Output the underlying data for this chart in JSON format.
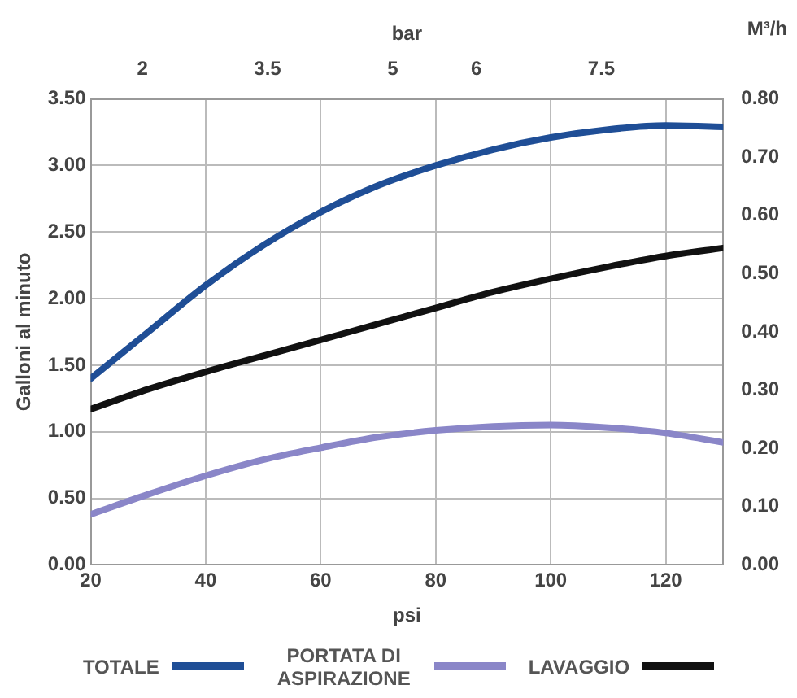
{
  "chart_data": {
    "type": "line",
    "xlabel": "psi",
    "ylabel": "Galloni al minuto",
    "x2label": "bar",
    "y2label": "M³/h",
    "x": [
      20,
      30,
      40,
      50,
      60,
      70,
      80,
      90,
      100,
      110,
      120,
      130
    ],
    "series": [
      {
        "name": "TOTALE",
        "color": "#1f4e96",
        "values": [
          1.4,
          1.75,
          2.1,
          2.4,
          2.65,
          2.85,
          3.0,
          3.12,
          3.21,
          3.27,
          3.3,
          3.29
        ]
      },
      {
        "name": "PORTATA DI ASPIRAZIONE",
        "color": "#8a86c8",
        "values": [
          0.38,
          0.53,
          0.67,
          0.79,
          0.88,
          0.96,
          1.01,
          1.04,
          1.05,
          1.03,
          0.99,
          0.92
        ]
      },
      {
        "name": "LAVAGGIO",
        "color": "#111111",
        "values": [
          1.17,
          1.32,
          1.45,
          1.57,
          1.69,
          1.81,
          1.93,
          2.05,
          2.15,
          2.24,
          2.32,
          2.38
        ]
      }
    ],
    "xlim": [
      20,
      130
    ],
    "xticks": [
      20,
      40,
      60,
      80,
      100,
      120
    ],
    "ylim": [
      0,
      3.5
    ],
    "yticks": [
      {
        "value": 0,
        "label": "0.00"
      },
      {
        "value": 0.5,
        "label": "0.50"
      },
      {
        "value": 1,
        "label": "1.00"
      },
      {
        "value": 1.5,
        "label": "1.50"
      },
      {
        "value": 2,
        "label": "2.00"
      },
      {
        "value": 2.5,
        "label": "2.50"
      },
      {
        "value": 3,
        "label": "3.00"
      },
      {
        "value": 3.5,
        "label": "3.50"
      }
    ],
    "y2lim": [
      0,
      0.8
    ],
    "y2ticks": [
      {
        "value": 0,
        "label": "0.00"
      },
      {
        "value": 0.1,
        "label": "0.10"
      },
      {
        "value": 0.2,
        "label": "0.20"
      },
      {
        "value": 0.3,
        "label": "0.30"
      },
      {
        "value": 0.4,
        "label": "0.40"
      },
      {
        "value": 0.5,
        "label": "0.50"
      },
      {
        "value": 0.6,
        "label": "0.60"
      },
      {
        "value": 0.7,
        "label": "0.70"
      },
      {
        "value": 0.8,
        "label": "0.80"
      }
    ],
    "x2lim": [
      1.38,
      8.96
    ],
    "x2ticks": [
      2,
      3.5,
      5,
      6,
      7.5
    ],
    "grid": true,
    "legend": "bottom",
    "marker": "none",
    "line_style": "solid"
  }
}
